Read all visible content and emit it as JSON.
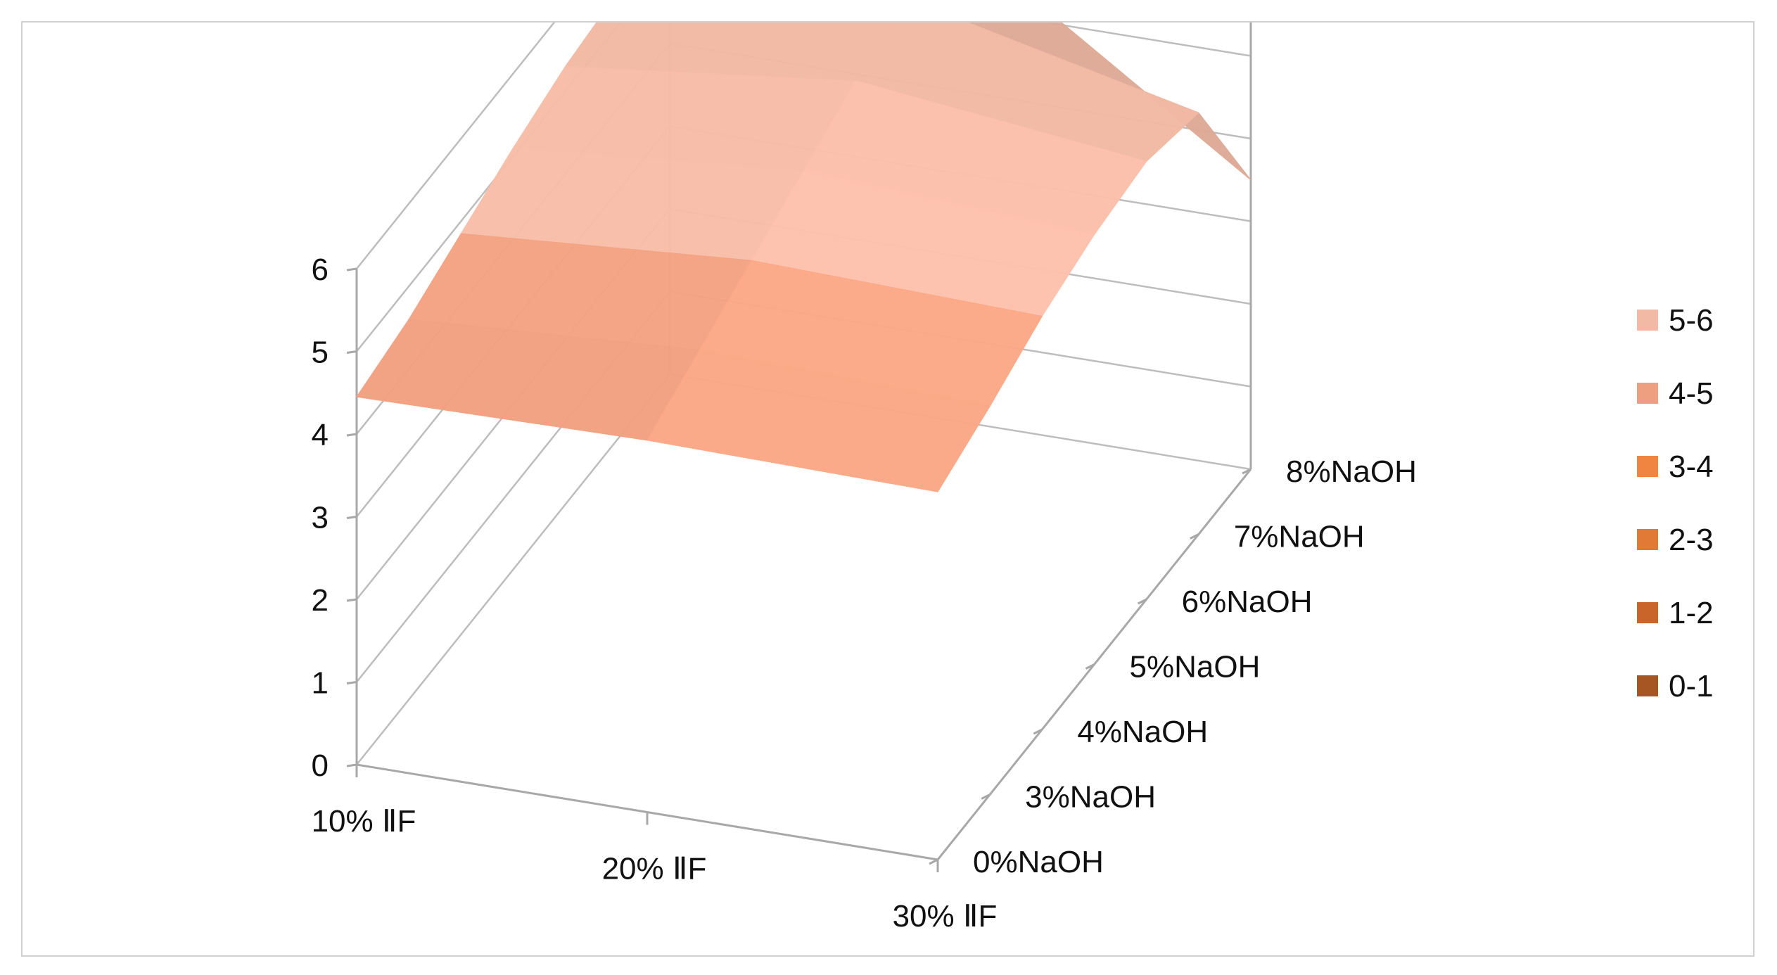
{
  "chart_data": {
    "type": "surface",
    "z_ticks": [
      "0",
      "1",
      "2",
      "3",
      "4",
      "5",
      "6"
    ],
    "zlim": [
      0,
      6
    ],
    "x_categories": [
      "10% ⅡF",
      "20% ⅡF",
      "30% ⅡF"
    ],
    "depth_categories": [
      "0%NaOH",
      "3%NaOH",
      "4%NaOH",
      "5%NaOH",
      "6%NaOH",
      "7%NaOH",
      "8%NaOH"
    ],
    "depth_labels_display": [
      "0%NaOH",
      "3%NaOH",
      "4%NaOH",
      "5%NaOH",
      "6%NaOH",
      "7%NaOH",
      "8%NaOH"
    ],
    "values": [
      [
        4.45,
        4.5,
        4.45
      ],
      [
        4.6,
        4.8,
        4.7
      ],
      [
        4.85,
        5.1,
        5.0
      ],
      [
        5.1,
        5.4,
        5.2
      ],
      [
        5.3,
        5.7,
        5.3
      ],
      [
        5.4,
        5.9,
        5.1
      ],
      [
        5.35,
        5.85,
        3.5
      ]
    ],
    "legend": [
      {
        "label": "5-6",
        "color": "#f2b9a4"
      },
      {
        "label": "4-5",
        "color": "#ee9f7f"
      },
      {
        "label": "3-4",
        "color": "#ef8540"
      },
      {
        "label": "2-3",
        "color": "#e07a35"
      },
      {
        "label": "1-2",
        "color": "#c9652a"
      },
      {
        "label": "0-1",
        "color": "#a65622"
      }
    ],
    "legend_position": "right",
    "grid": true
  }
}
